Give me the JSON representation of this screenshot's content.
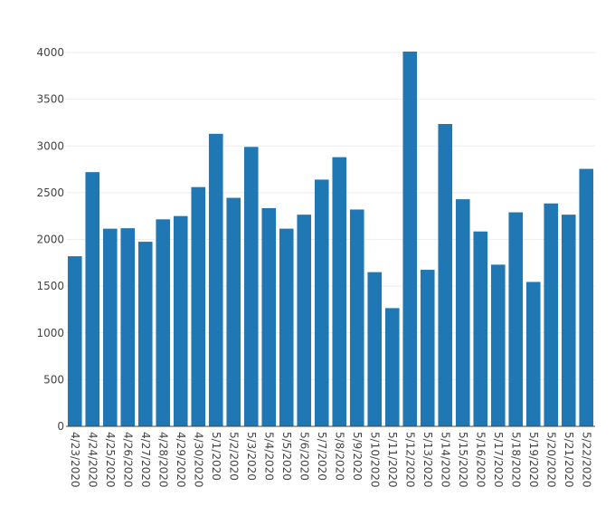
{
  "chart_data": {
    "type": "bar",
    "title": "",
    "xlabel": "",
    "ylabel": "",
    "categories": [
      "4/23/2020",
      "4/24/2020",
      "4/25/2020",
      "4/26/2020",
      "4/27/2020",
      "4/28/2020",
      "4/29/2020",
      "4/30/2020",
      "5/1/2020",
      "5/2/2020",
      "5/3/2020",
      "5/4/2020",
      "5/5/2020",
      "5/6/2020",
      "5/7/2020",
      "5/8/2020",
      "5/9/2020",
      "5/10/2020",
      "5/11/2020",
      "5/12/2020",
      "5/13/2020",
      "5/14/2020",
      "5/15/2020",
      "5/16/2020",
      "5/17/2020",
      "5/18/2020",
      "5/19/2020",
      "5/20/2020",
      "5/21/2020",
      "5/22/2020"
    ],
    "values": [
      1820,
      2720,
      2115,
      2120,
      1975,
      2215,
      2250,
      2560,
      3130,
      2445,
      2990,
      2335,
      2115,
      2265,
      2640,
      2880,
      2320,
      1650,
      1265,
      4010,
      1675,
      3235,
      2430,
      2085,
      1730,
      2290,
      1545,
      2385,
      2265,
      2755
    ],
    "ylim": [
      0,
      4000
    ],
    "yticks": [
      0,
      500,
      1000,
      1500,
      2000,
      2500,
      3000,
      3500,
      4000
    ],
    "grid": true,
    "bar_color": "#1f77b4"
  }
}
